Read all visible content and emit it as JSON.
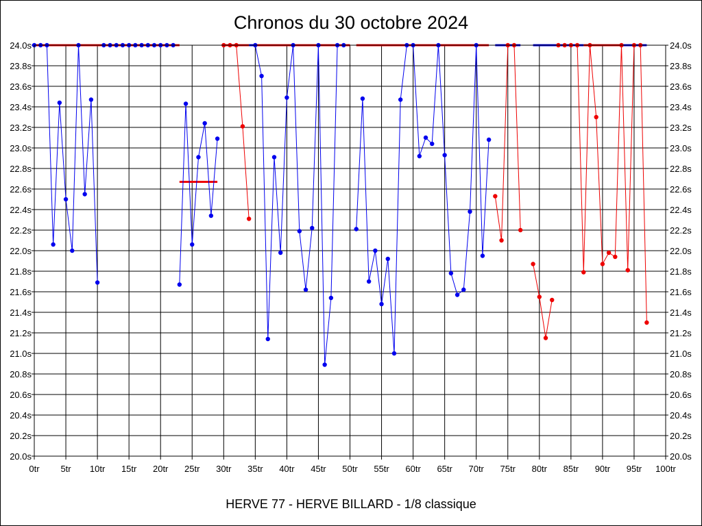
{
  "chart_data": {
    "type": "line",
    "title": "Chronos du 30 octobre 2024",
    "subtitle": "HERVE 77 - HERVE BILLARD - 1/8 classique",
    "xlim": [
      0,
      100
    ],
    "ylim": [
      20.0,
      24.0
    ],
    "x_tick_labels": [
      "0tr",
      "5tr",
      "10tr",
      "15tr",
      "20tr",
      "25tr",
      "30tr",
      "35tr",
      "40tr",
      "45tr",
      "50tr",
      "55tr",
      "60tr",
      "65tr",
      "70tr",
      "75tr",
      "80tr",
      "85tr",
      "90tr",
      "95tr",
      "100tr"
    ],
    "y_tick_labels": [
      "20.0s",
      "20.2s",
      "20.4s",
      "20.6s",
      "20.8s",
      "21.0s",
      "21.2s",
      "21.4s",
      "21.6s",
      "21.8s",
      "22.0s",
      "22.2s",
      "22.4s",
      "22.6s",
      "22.8s",
      "23.0s",
      "23.2s",
      "23.4s",
      "23.6s",
      "23.8s",
      "24.0s"
    ],
    "grid": true,
    "series": [
      {
        "color": "#0000ee",
        "points": [
          [
            0,
            24.0
          ],
          [
            1,
            24.0
          ],
          [
            2,
            24.0
          ],
          [
            3,
            22.06
          ],
          [
            4,
            23.44
          ],
          [
            5,
            22.5
          ],
          [
            6,
            22.0
          ],
          [
            7,
            24.0
          ],
          [
            8,
            22.55
          ],
          [
            9,
            23.47
          ],
          [
            10,
            21.69
          ]
        ]
      },
      {
        "color": "#0000ee",
        "points": [
          [
            11,
            24.0
          ],
          [
            12,
            24.0
          ],
          [
            13,
            24.0
          ],
          [
            14,
            24.0
          ],
          [
            15,
            24.0
          ],
          [
            16,
            24.0
          ],
          [
            17,
            24.0
          ],
          [
            18,
            24.0
          ],
          [
            19,
            24.0
          ],
          [
            20,
            24.0
          ],
          [
            21,
            24.0
          ],
          [
            22,
            24.0
          ]
        ]
      },
      {
        "color": "#0000ee",
        "points": [
          [
            23,
            21.67
          ],
          [
            24,
            23.43
          ],
          [
            25,
            22.06
          ],
          [
            26,
            22.91
          ],
          [
            27,
            23.24
          ],
          [
            28,
            22.34
          ],
          [
            29,
            23.09
          ]
        ]
      },
      {
        "color": "#ee0000",
        "points": [
          [
            30,
            24.0
          ],
          [
            31,
            24.0
          ],
          [
            32,
            24.0
          ],
          [
            33,
            23.21
          ],
          [
            34,
            22.31
          ]
        ]
      },
      {
        "color": "#0000ee",
        "points": [
          [
            35,
            24.0
          ],
          [
            36,
            23.7
          ],
          [
            37,
            21.14
          ],
          [
            38,
            22.91
          ],
          [
            39,
            21.98
          ],
          [
            40,
            23.49
          ],
          [
            41,
            24.0
          ],
          [
            42,
            22.19
          ],
          [
            43,
            21.62
          ],
          [
            44,
            22.22
          ],
          [
            45,
            24.0
          ],
          [
            46,
            20.89
          ],
          [
            47,
            21.54
          ],
          [
            48,
            24.0
          ],
          [
            49,
            24.0
          ]
        ]
      },
      {
        "color": "#0000ee",
        "points": [
          [
            51,
            22.21
          ],
          [
            52,
            23.48
          ],
          [
            53,
            21.7
          ],
          [
            54,
            22.0
          ],
          [
            55,
            21.48
          ],
          [
            56,
            21.92
          ],
          [
            57,
            21.0
          ],
          [
            58,
            23.47
          ],
          [
            59,
            24.0
          ],
          [
            60,
            24.0
          ],
          [
            61,
            22.92
          ],
          [
            62,
            23.1
          ],
          [
            63,
            23.04
          ],
          [
            64,
            24.0
          ],
          [
            65,
            22.93
          ],
          [
            66,
            21.78
          ],
          [
            67,
            21.57
          ],
          [
            68,
            21.62
          ],
          [
            69,
            22.38
          ],
          [
            70,
            24.0
          ],
          [
            71,
            21.95
          ],
          [
            72,
            23.08
          ]
        ]
      },
      {
        "color": "#ee0000",
        "points": [
          [
            73,
            22.53
          ],
          [
            74,
            22.1
          ],
          [
            75,
            24.0
          ],
          [
            76,
            24.0
          ],
          [
            77,
            22.2
          ]
        ]
      },
      {
        "color": "#ee0000",
        "points": [
          [
            79,
            21.87
          ],
          [
            80,
            21.55
          ],
          [
            81,
            21.15
          ],
          [
            82,
            21.52
          ]
        ]
      },
      {
        "color": "#ee0000",
        "points": [
          [
            83,
            24.0
          ],
          [
            84,
            24.0
          ],
          [
            85,
            24.0
          ],
          [
            86,
            24.0
          ],
          [
            87,
            21.79
          ],
          [
            88,
            24.0
          ],
          [
            89,
            23.3
          ],
          [
            90,
            21.87
          ],
          [
            91,
            21.98
          ],
          [
            92,
            21.94
          ],
          [
            93,
            24.0
          ],
          [
            94,
            21.81
          ],
          [
            95,
            24.0
          ],
          [
            96,
            24.0
          ],
          [
            97,
            21.3
          ]
        ]
      }
    ],
    "ceiling_segments": [
      {
        "color": "#ee0000",
        "x": [
          0,
          23
        ]
      },
      {
        "color": "#ee0000",
        "x": [
          30,
          34
        ]
      },
      {
        "color": "#0000ee",
        "x": [
          34,
          35
        ]
      },
      {
        "color": "#ee0000",
        "x": [
          35,
          50
        ]
      },
      {
        "color": "#ee0000",
        "x": [
          51,
          72
        ]
      },
      {
        "color": "#0000ee",
        "x": [
          73,
          77
        ]
      },
      {
        "color": "#0000ee",
        "x": [
          79,
          87
        ]
      },
      {
        "color": "#ee0000",
        "x": [
          87,
          93
        ]
      },
      {
        "color": "#0000ee",
        "x": [
          93,
          97
        ]
      }
    ],
    "average_lines": [
      {
        "color": "#ee0000",
        "x": [
          23,
          29
        ],
        "y": 22.67
      }
    ]
  }
}
